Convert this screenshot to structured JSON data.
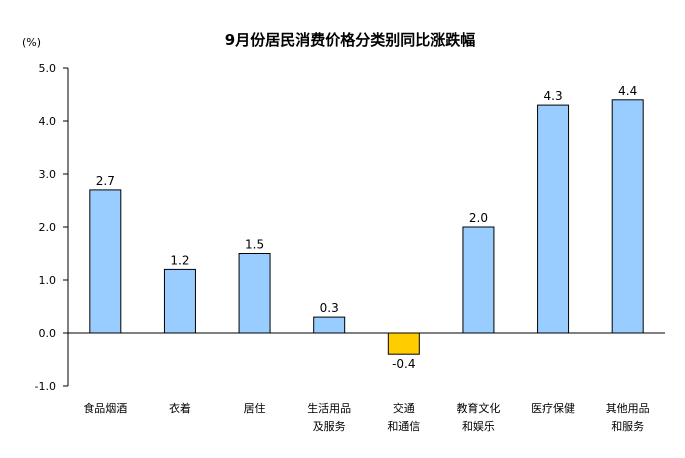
{
  "chart_data": {
    "type": "bar",
    "title": "9月份居民消费价格分类别同比涨跌幅",
    "ylabel": "(%)",
    "xlabel": "",
    "ylim": [
      -1.0,
      5.0
    ],
    "yticks": [
      "5.0",
      "4.0",
      "3.0",
      "2.0",
      "1.0",
      "0.0",
      "-1.0"
    ],
    "categories": [
      [
        "食品烟酒"
      ],
      [
        "衣着"
      ],
      [
        "居住"
      ],
      [
        "生活用品",
        "及服务"
      ],
      [
        "交通",
        "和通信"
      ],
      [
        "教育文化",
        "和娱乐"
      ],
      [
        "医疗保健"
      ],
      [
        "其他用品",
        "和服务"
      ]
    ],
    "values": [
      2.7,
      1.2,
      1.5,
      0.3,
      -0.4,
      2.0,
      4.3,
      4.4
    ],
    "value_labels": [
      "2.7",
      "1.2",
      "1.5",
      "0.3",
      "-0.4",
      "2.0",
      "4.3",
      "4.4"
    ],
    "colors": {
      "positive": "#99ccff",
      "negative": "#ffcc00",
      "bar_stroke": "#000000",
      "axis": "#000000"
    },
    "grid": false,
    "legend": "none"
  }
}
